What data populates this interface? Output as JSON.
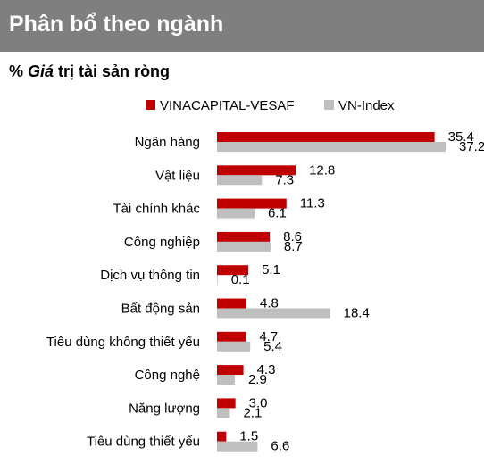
{
  "header": {
    "title": "Phân bổ theo ngành"
  },
  "subtitle": {
    "prefix": "% ",
    "italic": "Giá",
    "rest": " trị tài sản ròng"
  },
  "colors": {
    "header_bg": "#7f7f7f",
    "series1": "#c00000",
    "series2": "#bfbfbf"
  },
  "chart_data": {
    "type": "bar",
    "orientation": "horizontal",
    "title": "",
    "xlabel": "",
    "ylabel": "",
    "xlim": [
      0,
      37.2
    ],
    "grid": false,
    "legend_position": "top",
    "categories": [
      "Ngân hàng",
      "Vật liệu",
      "Tài chính khác",
      "Công nghiệp",
      "Dịch vụ thông tin",
      "Bất động sản",
      "Tiêu dùng không thiết yếu",
      "Công nghệ",
      "Năng lượng",
      "Tiêu dùng thiết yếu"
    ],
    "series": [
      {
        "name": "VINACAPITAL-VESAF",
        "color": "#c00000",
        "values": [
          35.4,
          12.8,
          11.3,
          8.6,
          5.1,
          4.8,
          4.7,
          4.3,
          3.0,
          1.5
        ],
        "labels": [
          "35.4",
          "12.8",
          "11.3",
          "8.6",
          "5.1",
          "4.8",
          "4.7",
          "4.3",
          "3.0",
          "1.5"
        ]
      },
      {
        "name": "VN-Index",
        "color": "#bfbfbf",
        "values": [
          37.2,
          7.3,
          6.1,
          8.7,
          0.1,
          18.4,
          5.4,
          2.9,
          2.1,
          6.6
        ],
        "labels": [
          "37.2",
          "7.3",
          "6.1",
          "8.7",
          "0.1",
          "18.4",
          "5.4",
          "2.9",
          "2.1",
          "6.6"
        ]
      }
    ]
  }
}
